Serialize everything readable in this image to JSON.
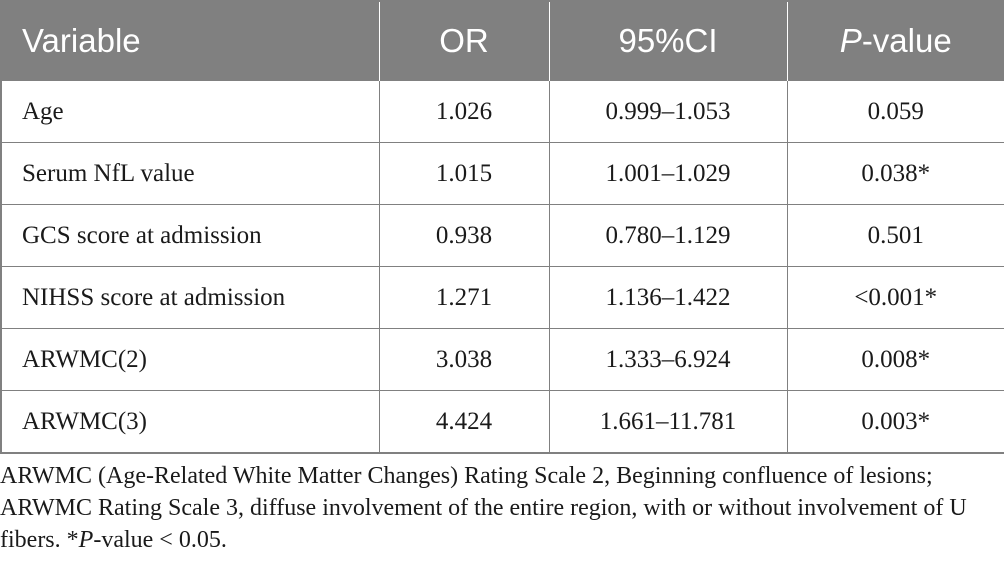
{
  "table": {
    "headers": {
      "variable": "Variable",
      "or": "OR",
      "ci": "95%CI",
      "p_letter": "P",
      "p_rest": "-value"
    },
    "rows": [
      {
        "variable": "Age",
        "or": "1.026",
        "ci": "0.999–1.053",
        "p": "0.059"
      },
      {
        "variable": "Serum NfL value",
        "or": "1.015",
        "ci": "1.001–1.029",
        "p": "0.038*"
      },
      {
        "variable": "GCS score at admission",
        "or": "0.938",
        "ci": "0.780–1.129",
        "p": "0.501"
      },
      {
        "variable": "NIHSS score at admission",
        "or": "1.271",
        "ci": "1.136–1.422",
        "p": "<0.001*"
      },
      {
        "variable": "ARWMC(2)",
        "or": "3.038",
        "ci": "1.333–6.924",
        "p": "0.008*"
      },
      {
        "variable": "ARWMC(3)",
        "or": "4.424",
        "ci": "1.661–11.781",
        "p": "0.003*"
      }
    ]
  },
  "footnote": {
    "part1": "ARWMC (Age-Related White Matter Changes) Rating Scale 2, Beginning confluence of lesions; ARWMC Rating Scale 3, diffuse involvement of the entire region, with or without involvement of U fibers. *",
    "p_letter": "P",
    "part2": "-value < 0.05."
  },
  "colors": {
    "header_bg": "#808080",
    "header_text": "#ffffff",
    "border": "#808080",
    "body_text": "#1a1a1a"
  }
}
